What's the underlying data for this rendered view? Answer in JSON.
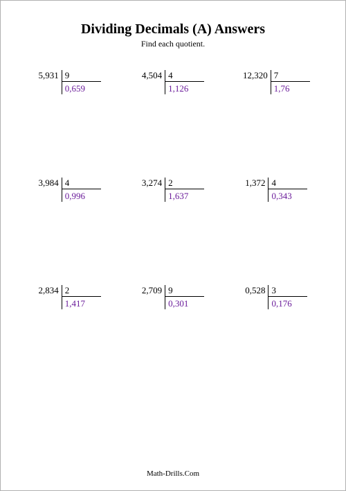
{
  "title": "Dividing Decimals (A) Answers",
  "subtitle": "Find each quotient.",
  "footer": "Math-Drills.Com",
  "colors": {
    "text": "#000000",
    "answer": "#6a1b9a",
    "border": "#b0b0b0",
    "background": "#ffffff"
  },
  "fontsize": {
    "title": 20,
    "subtitle": 12,
    "body": 13,
    "footer": 11
  },
  "problems": [
    {
      "dividend": "5,931",
      "divisor": "9",
      "quotient": "0,659"
    },
    {
      "dividend": "4,504",
      "divisor": "4",
      "quotient": "1,126"
    },
    {
      "dividend": "12,320",
      "divisor": "7",
      "quotient": "1,76"
    },
    {
      "dividend": "3,984",
      "divisor": "4",
      "quotient": "0,996"
    },
    {
      "dividend": "3,274",
      "divisor": "2",
      "quotient": "1,637"
    },
    {
      "dividend": "1,372",
      "divisor": "4",
      "quotient": "0,343"
    },
    {
      "dividend": "2,834",
      "divisor": "2",
      "quotient": "1,417"
    },
    {
      "dividend": "2,709",
      "divisor": "9",
      "quotient": "0,301"
    },
    {
      "dividend": "0,528",
      "divisor": "3",
      "quotient": "0,176"
    }
  ]
}
